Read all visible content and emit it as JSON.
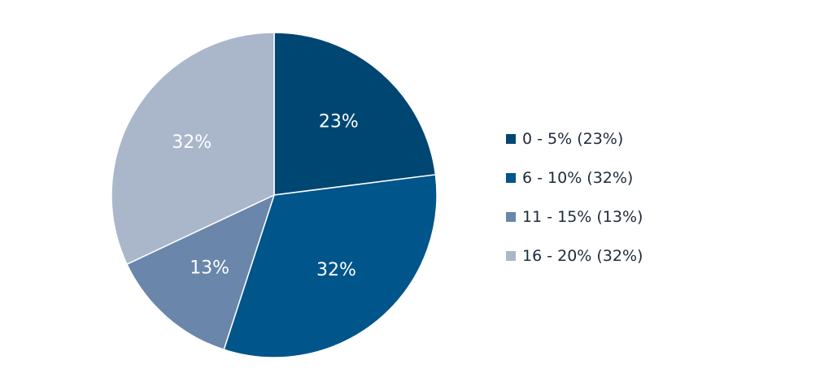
{
  "chart_data": {
    "type": "pie",
    "title": "",
    "slices": [
      {
        "label": "0 - 5%",
        "value": 23,
        "percent_label": "23%",
        "legend_label": "0 - 5% (23%)",
        "color": "#004673"
      },
      {
        "label": "6 - 10%",
        "value": 32,
        "percent_label": "32%",
        "legend_label": "6 - 10% (32%)",
        "color": "#00558b"
      },
      {
        "label": "11 - 15%",
        "value": 13,
        "percent_label": "13%",
        "legend_label": "11 - 15% (13%)",
        "color": "#6a86aa"
      },
      {
        "label": "16 - 20%",
        "value": 32,
        "percent_label": "32%",
        "legend_label": "16 - 20% (32%)",
        "color": "#aab7cb"
      }
    ],
    "start_angle_deg": 0,
    "direction": "clockwise",
    "legend_position": "right"
  }
}
